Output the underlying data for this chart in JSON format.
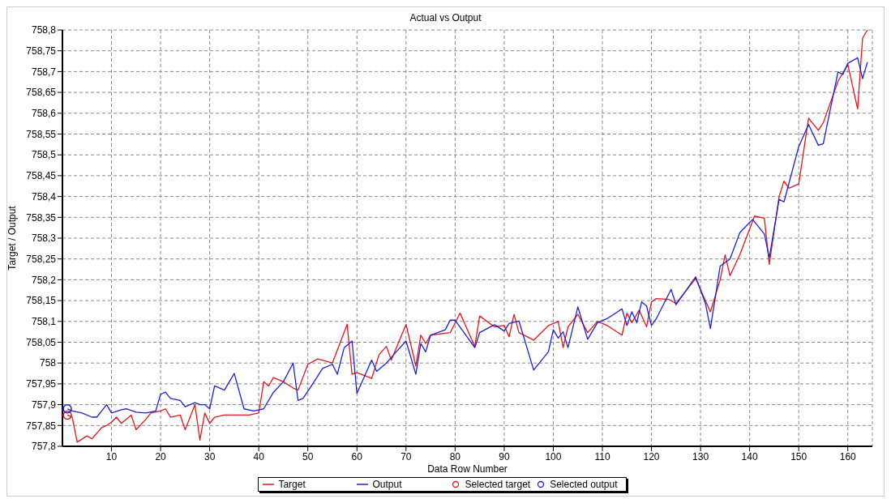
{
  "chart_data": {
    "type": "line",
    "title": "Actual vs Output",
    "xlabel": "Data Row Number",
    "ylabel": "Target / Output",
    "xlim": [
      0,
      165
    ],
    "xticks": [
      10,
      20,
      30,
      40,
      50,
      60,
      70,
      80,
      90,
      100,
      110,
      120,
      130,
      140,
      150,
      160
    ],
    "ylim": [
      757.8,
      758.8
    ],
    "yticks": [
      {
        "value": 757.8,
        "label": "757,8"
      },
      {
        "value": 757.85,
        "label": "757,85"
      },
      {
        "value": 757.9,
        "label": "757,9"
      },
      {
        "value": 757.95,
        "label": "757,95"
      },
      {
        "value": 758,
        "label": "758"
      },
      {
        "value": 758.05,
        "label": "758,05"
      },
      {
        "value": 758.1,
        "label": "758,1"
      },
      {
        "value": 758.15,
        "label": "758,15"
      },
      {
        "value": 758.2,
        "label": "758,2"
      },
      {
        "value": 758.25,
        "label": "758,25"
      },
      {
        "value": 758.3,
        "label": "758,3"
      },
      {
        "value": 758.35,
        "label": "758,35"
      },
      {
        "value": 758.4,
        "label": "758,4"
      },
      {
        "value": 758.45,
        "label": "758,45"
      },
      {
        "value": 758.5,
        "label": "758,5"
      },
      {
        "value": 758.55,
        "label": "758,55"
      },
      {
        "value": 758.6,
        "label": "758,6"
      },
      {
        "value": 758.65,
        "label": "758,65"
      },
      {
        "value": 758.7,
        "label": "758,7"
      },
      {
        "value": 758.75,
        "label": "758,75"
      },
      {
        "value": 758.8,
        "label": "758,8"
      }
    ],
    "grid": true,
    "legend": "bottom",
    "line_style": "solid",
    "series": [
      {
        "name": "Target",
        "color": "#e0191e",
        "marker": "none",
        "x": [
          1,
          2,
          3,
          5,
          6,
          8,
          9,
          10,
          11,
          12,
          14,
          15,
          17,
          18,
          20,
          21,
          22,
          24,
          25,
          27,
          28,
          29,
          30,
          31,
          33,
          38,
          40,
          41,
          42,
          43,
          45,
          47,
          48,
          50,
          52,
          55,
          58,
          59,
          60,
          63,
          64.5,
          66,
          67,
          70,
          72,
          73,
          74,
          75,
          79,
          81,
          84,
          85,
          88,
          90,
          91,
          92,
          93,
          96,
          99,
          101,
          102,
          103,
          105,
          107,
          109,
          111,
          114,
          115,
          116,
          117.5,
          119,
          120,
          121,
          123.5,
          125,
          129,
          132,
          134,
          135,
          136,
          138,
          141,
          143,
          144,
          146,
          147,
          148,
          150,
          152,
          154,
          155,
          158,
          160,
          162,
          163,
          164
        ],
        "values": [
          757.875,
          757.87,
          757.81,
          757.825,
          757.818,
          757.845,
          757.85,
          757.858,
          757.87,
          757.855,
          757.875,
          757.84,
          757.865,
          757.88,
          757.885,
          757.89,
          757.87,
          757.875,
          757.84,
          757.9,
          757.815,
          757.88,
          757.855,
          757.87,
          757.875,
          757.875,
          757.88,
          757.955,
          757.945,
          757.965,
          757.955,
          757.94,
          757.935,
          757.997,
          758.01,
          758,
          758.093,
          757.973,
          757.977,
          757.963,
          758.02,
          758.04,
          758.007,
          758.093,
          757.993,
          758.067,
          758.047,
          758.067,
          758.073,
          758.12,
          758.04,
          758.113,
          758.087,
          758.09,
          758.063,
          758.117,
          758.073,
          758.055,
          758.09,
          758.1,
          758.037,
          758.087,
          758.117,
          758.073,
          758.1,
          758.09,
          758.067,
          758.12,
          758.097,
          758.127,
          758.087,
          758.147,
          758.155,
          758.153,
          758.143,
          758.203,
          758.123,
          758.2,
          758.26,
          758.21,
          758.26,
          758.353,
          758.348,
          758.237,
          758.4,
          758.437,
          758.42,
          758.43,
          758.588,
          758.559,
          758.577,
          758.677,
          758.717,
          758.61,
          758.78,
          758.8
        ]
      },
      {
        "name": "Output",
        "color": "#1c22d6",
        "marker": "none",
        "x": [
          1,
          2,
          4,
          6,
          7,
          9,
          10,
          12,
          13,
          15,
          17,
          19,
          20,
          21,
          22,
          24,
          25,
          27,
          28,
          29,
          30,
          31,
          33,
          35,
          37,
          39,
          41,
          43,
          45,
          47,
          48,
          49,
          51,
          53,
          55,
          56,
          57.4,
          59,
          60,
          63,
          64,
          66,
          68,
          70,
          72,
          73,
          74,
          75,
          78,
          79,
          80,
          84,
          85,
          88,
          90,
          91,
          93,
          96,
          99,
          100,
          101,
          102,
          103,
          105,
          107,
          109,
          111,
          114,
          115,
          116,
          117,
          118,
          119,
          120,
          121,
          124,
          125,
          129,
          131,
          132,
          134,
          136,
          138,
          140.6,
          143,
          144,
          146,
          147,
          150,
          152,
          154,
          155,
          158,
          159,
          160,
          162,
          163,
          164
        ],
        "values": [
          757.89,
          757.885,
          757.88,
          757.87,
          757.87,
          757.9,
          757.88,
          757.888,
          757.89,
          757.882,
          757.88,
          757.885,
          757.925,
          757.93,
          757.915,
          757.91,
          757.895,
          757.905,
          757.9,
          757.9,
          757.89,
          757.945,
          757.935,
          757.975,
          757.89,
          757.885,
          757.89,
          757.93,
          757.955,
          758,
          757.91,
          757.915,
          757.95,
          757.987,
          757.997,
          757.973,
          758.037,
          758.053,
          757.927,
          758.007,
          757.98,
          758,
          758.027,
          758.053,
          757.973,
          758.047,
          758.027,
          758.067,
          758.08,
          758.103,
          758.103,
          758.037,
          758.073,
          758.092,
          758.077,
          758.095,
          758.101,
          757.983,
          758.027,
          758.08,
          758.06,
          758.075,
          758.037,
          758.135,
          758.057,
          758.097,
          758.107,
          758.13,
          758.09,
          758.123,
          758.097,
          758.147,
          758.137,
          758.09,
          758.107,
          758.177,
          758.14,
          758.207,
          758.143,
          758.083,
          758.233,
          758.25,
          758.313,
          758.345,
          758.31,
          758.253,
          758.393,
          758.387,
          758.52,
          758.573,
          758.523,
          758.527,
          758.699,
          758.693,
          758.72,
          758.733,
          758.683,
          758.723
        ]
      },
      {
        "name": "Selected target",
        "type": "scatter",
        "color": "#e0191e",
        "marker": "circle",
        "x": [
          1
        ],
        "values": [
          757.875
        ]
      },
      {
        "name": "Selected output",
        "type": "scatter",
        "color": "#1c22d6",
        "marker": "circle",
        "x": [
          1
        ],
        "values": [
          757.89
        ]
      }
    ]
  }
}
